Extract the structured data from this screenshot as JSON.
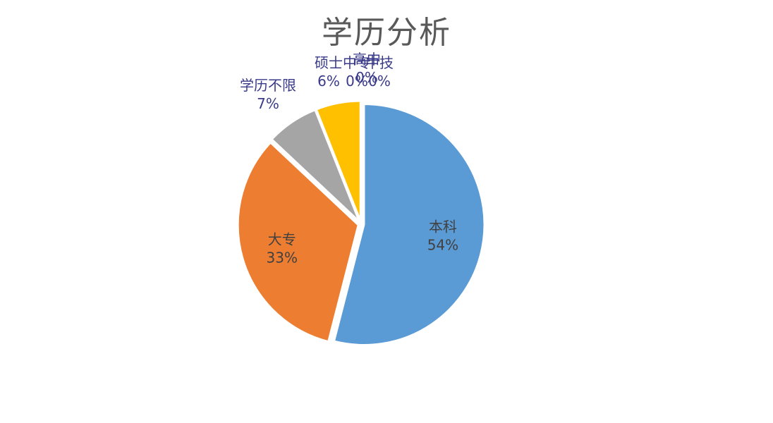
{
  "chart_data": {
    "type": "pie",
    "title": "学历分析",
    "slices": [
      {
        "label": "本科",
        "value": 54,
        "percent_label": "54%",
        "color": "#5B9BD5"
      },
      {
        "label": "大专",
        "value": 33,
        "percent_label": "33%",
        "color": "#ED7D31"
      },
      {
        "label": "学历不限",
        "value": 7,
        "percent_label": "7%",
        "color": "#A5A5A5"
      },
      {
        "label": "硕士",
        "value": 6,
        "percent_label": "6%",
        "color": "#FFC000"
      },
      {
        "label": "中专",
        "value": 0,
        "percent_label": "0%",
        "color": "#4472C4"
      },
      {
        "label": "高中",
        "value": 0,
        "percent_label": "0%",
        "color": "#70AD47"
      },
      {
        "label": "中技",
        "value": 0,
        "percent_label": "0%",
        "color": "#264478"
      }
    ],
    "label_color_inside": "#404040",
    "label_color_outside": "#3a3a8a",
    "legend": "none"
  }
}
